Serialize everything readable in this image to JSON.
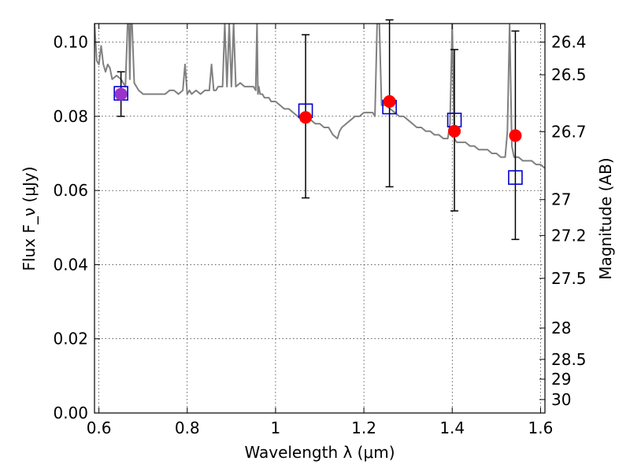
{
  "chart_data": {
    "type": "scatter",
    "xlabel": "Wavelength λ (μm)",
    "ylabel": "Flux F_ν (μJy)",
    "ylabel_right": "Magnitude (AB)",
    "xlim": [
      0.59,
      1.61
    ],
    "ylim": [
      0.0,
      0.105
    ],
    "grid": true,
    "x_ticks": [
      0.6,
      0.8,
      1.0,
      1.2,
      1.4,
      1.6
    ],
    "x_tick_labels": [
      "0.6",
      "0.8",
      "1",
      "1.2",
      "1.4",
      "1.6"
    ],
    "y_ticks": [
      0.0,
      0.02,
      0.04,
      0.06,
      0.08,
      0.1
    ],
    "y_tick_labels": [
      "0.00",
      "0.02",
      "0.04",
      "0.06",
      "0.08",
      "0.10"
    ],
    "mag_ticks": [
      26.4,
      26.5,
      26.7,
      27,
      27.2,
      27.5,
      28,
      28.5,
      29,
      30
    ],
    "mag_tick_labels": [
      "26.4",
      "26.5",
      "26.7",
      "27",
      "27.2",
      "27.5",
      "28",
      "28.5",
      "29",
      "30"
    ],
    "colors": {
      "observed": "#ff0000",
      "model_band": "#0000cc",
      "spectrum": "#808080",
      "errorbar": "#000000",
      "overlap": "#9933cc"
    },
    "series": [
      {
        "marker": "circle",
        "points": [
          {
            "x": 0.65,
            "y": 0.086,
            "yerr_low": 0.006,
            "yerr_high": 0.006
          },
          {
            "x": 1.068,
            "y": 0.0797,
            "yerr_low": 0.0217,
            "yerr_high": 0.0223
          },
          {
            "x": 1.258,
            "y": 0.084,
            "yerr_low": 0.023,
            "yerr_high": 0.022
          },
          {
            "x": 1.405,
            "y": 0.076,
            "yerr_low": 0.0215,
            "yerr_high": 0.022
          },
          {
            "x": 1.543,
            "y": 0.0748,
            "yerr_low": 0.028,
            "yerr_high": 0.0282
          }
        ]
      },
      {
        "marker": "square",
        "points": [
          {
            "x": 0.65,
            "y": 0.0862
          },
          {
            "x": 1.068,
            "y": 0.0815
          },
          {
            "x": 1.258,
            "y": 0.0825
          },
          {
            "x": 1.405,
            "y": 0.079
          },
          {
            "x": 1.543,
            "y": 0.0635
          }
        ]
      },
      {
        "type": "line",
        "x": [
          0.59,
          0.595,
          0.6,
          0.605,
          0.61,
          0.615,
          0.62,
          0.625,
          0.63,
          0.64,
          0.65,
          0.655,
          0.66,
          0.665,
          0.668,
          0.67,
          0.672,
          0.675,
          0.68,
          0.685,
          0.69,
          0.7,
          0.71,
          0.72,
          0.73,
          0.74,
          0.75,
          0.76,
          0.77,
          0.78,
          0.79,
          0.795,
          0.8,
          0.805,
          0.81,
          0.82,
          0.83,
          0.84,
          0.85,
          0.855,
          0.86,
          0.865,
          0.87,
          0.88,
          0.885,
          0.89,
          0.895,
          0.9,
          0.905,
          0.91,
          0.92,
          0.93,
          0.94,
          0.95,
          0.955,
          0.958,
          0.96,
          0.962,
          0.965,
          0.97,
          0.975,
          0.98,
          0.985,
          0.99,
          1.0,
          1.01,
          1.02,
          1.03,
          1.04,
          1.05,
          1.06,
          1.07,
          1.08,
          1.09,
          1.1,
          1.11,
          1.12,
          1.13,
          1.14,
          1.145,
          1.15,
          1.16,
          1.17,
          1.18,
          1.19,
          1.2,
          1.21,
          1.22,
          1.225,
          1.23,
          1.235,
          1.24,
          1.25,
          1.26,
          1.27,
          1.28,
          1.29,
          1.3,
          1.31,
          1.32,
          1.33,
          1.34,
          1.35,
          1.36,
          1.37,
          1.38,
          1.39,
          1.395,
          1.4,
          1.405,
          1.41,
          1.42,
          1.43,
          1.44,
          1.45,
          1.46,
          1.47,
          1.48,
          1.49,
          1.5,
          1.51,
          1.52,
          1.525,
          1.53,
          1.535,
          1.54,
          1.55,
          1.56,
          1.57,
          1.58,
          1.59,
          1.6,
          1.61
        ],
        "y": [
          0.105,
          0.095,
          0.094,
          0.099,
          0.094,
          0.092,
          0.094,
          0.093,
          0.09,
          0.091,
          0.09,
          0.089,
          0.088,
          0.105,
          0.105,
          0.09,
          0.105,
          0.105,
          0.089,
          0.088,
          0.087,
          0.086,
          0.086,
          0.086,
          0.086,
          0.086,
          0.086,
          0.087,
          0.087,
          0.086,
          0.087,
          0.094,
          0.086,
          0.087,
          0.086,
          0.087,
          0.086,
          0.087,
          0.087,
          0.094,
          0.087,
          0.087,
          0.088,
          0.088,
          0.105,
          0.088,
          0.105,
          0.088,
          0.105,
          0.088,
          0.089,
          0.088,
          0.088,
          0.088,
          0.087,
          0.105,
          0.086,
          0.088,
          0.086,
          0.086,
          0.085,
          0.085,
          0.085,
          0.084,
          0.084,
          0.083,
          0.082,
          0.082,
          0.081,
          0.08,
          0.079,
          0.079,
          0.079,
          0.078,
          0.078,
          0.077,
          0.077,
          0.075,
          0.074,
          0.076,
          0.077,
          0.078,
          0.079,
          0.08,
          0.08,
          0.081,
          0.081,
          0.081,
          0.08,
          0.105,
          0.105,
          0.083,
          0.083,
          0.082,
          0.081,
          0.08,
          0.08,
          0.079,
          0.078,
          0.077,
          0.077,
          0.076,
          0.076,
          0.075,
          0.075,
          0.074,
          0.074,
          0.078,
          0.105,
          0.074,
          0.073,
          0.073,
          0.073,
          0.072,
          0.072,
          0.071,
          0.071,
          0.071,
          0.07,
          0.07,
          0.069,
          0.069,
          0.076,
          0.105,
          0.072,
          0.069,
          0.069,
          0.068,
          0.068,
          0.068,
          0.067,
          0.067,
          0.066
        ]
      }
    ]
  }
}
